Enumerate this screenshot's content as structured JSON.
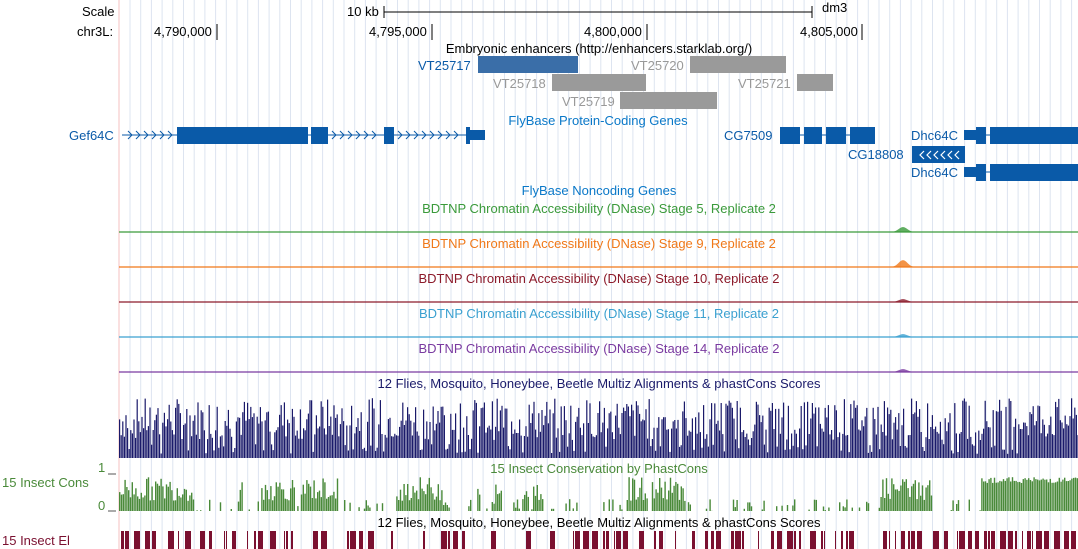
{
  "header": {
    "scale_label": "Scale",
    "scale_value": "10 kb",
    "assembly": "dm3",
    "chrom_label": "chr3L:",
    "positions": [
      "4,790,000",
      "4,795,000",
      "4,800,000",
      "4,805,000"
    ]
  },
  "tracks": {
    "enhancers": {
      "title": "Embryonic enhancers (http://enhancers.starklab.org/)",
      "items": [
        "VT25717",
        "VT25718",
        "VT25719",
        "VT25720",
        "VT25721"
      ]
    },
    "flybase_coding": {
      "title": "FlyBase Protein-Coding Genes",
      "genes": [
        "Gef64C",
        "CG7509",
        "Dhc64C",
        "CG18808",
        "Dhc64C"
      ]
    },
    "flybase_noncoding": {
      "title": "FlyBase Noncoding Genes"
    },
    "dnase": [
      {
        "title": "BDTNP Chromatin Accessibility (DNase) Stage 5, Replicate 2",
        "color": "#3a9a3a"
      },
      {
        "title": "BDTNP Chromatin Accessibility (DNase) Stage 9, Replicate 2",
        "color": "#f07818"
      },
      {
        "title": "BDTNP Chromatin Accessibility (DNase) Stage 10, Replicate 2",
        "color": "#8c1a2a"
      },
      {
        "title": "BDTNP Chromatin Accessibility (DNase) Stage 11, Replicate 2",
        "color": "#3aa0d0"
      },
      {
        "title": "BDTNP Chromatin Accessibility (DNase) Stage 14, Replicate 2",
        "color": "#7a3aa0"
      }
    ],
    "multiz": {
      "title": "12 Flies, Mosquito, Honeybee, Beetle Multiz Alignments & phastCons Scores"
    },
    "phastcons": {
      "title": "15 Insect Conservation by PhastCons",
      "left_label": "15 Insect Cons",
      "scale_max": "1",
      "scale_min": "0"
    },
    "elements": {
      "title": "12 Flies, Mosquito, Honeybee, Beetle Multiz Alignments & phastCons Scores",
      "left_label": "15 Insect El"
    }
  },
  "colors": {
    "gene_blue": "#0a5aa8",
    "enhancer_dark": "#3a6ea8",
    "enhancer_gray": "#9a9a9a",
    "multiz_navy": "#1a1a6a",
    "cons_green": "#4a8a3a",
    "el_maroon": "#7a1030",
    "guide": "#dde4f0"
  }
}
